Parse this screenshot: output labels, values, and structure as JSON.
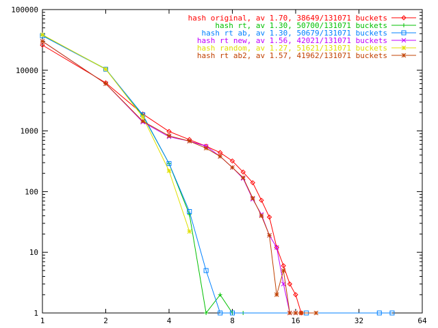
{
  "chart_data": {
    "type": "line",
    "title": "",
    "xlabel": "",
    "ylabel": "",
    "x_scale": "log2",
    "y_scale": "log10",
    "xlim": [
      1,
      64
    ],
    "ylim": [
      1,
      100000
    ],
    "x_ticks": [
      1,
      2,
      4,
      8,
      16,
      32,
      64
    ],
    "x_tick_labels": [
      "1",
      "2",
      "4",
      "8",
      "16",
      "32",
      "64"
    ],
    "y_ticks": [
      1,
      10,
      100,
      1000,
      10000,
      100000
    ],
    "y_tick_labels": [
      "1",
      "10",
      "100",
      "1000",
      "10000",
      "100000"
    ],
    "grid": false,
    "legend_position": "top-right",
    "series": [
      {
        "name": "hash original, av 1.70, 38649/131071 buckets",
        "color": "#ff0000",
        "marker": "diamond",
        "x": [
          1,
          2,
          3,
          4,
          5,
          6,
          7,
          8,
          9,
          10,
          11,
          12,
          13,
          14,
          15,
          16,
          17
        ],
        "y": [
          26000,
          6200,
          1900,
          980,
          720,
          560,
          440,
          320,
          210,
          140,
          72,
          38,
          12,
          6,
          3,
          2,
          1
        ]
      },
      {
        "name": "hash rt, av 1.30, 50700/131071 buckets",
        "color": "#00c000",
        "marker": "plus",
        "x": [
          1,
          2,
          3,
          4,
          5,
          6,
          7,
          8,
          9
        ],
        "y": [
          38000,
          10500,
          1800,
          290,
          42,
          1,
          2,
          1,
          1
        ]
      },
      {
        "name": "hash rt ab, av 1.30, 50679/131071 buckets",
        "color": "#0080ff",
        "marker": "square",
        "x": [
          1,
          2,
          3,
          4,
          5,
          6,
          7,
          8,
          18,
          40,
          46
        ],
        "y": [
          37000,
          10400,
          1850,
          290,
          47,
          5,
          1,
          1,
          1,
          1,
          1
        ]
      },
      {
        "name": "hash rt new, av 1.56, 42021/131071 buckets",
        "color": "#c000ff",
        "marker": "x",
        "x": [
          1,
          2,
          3,
          4,
          5,
          6,
          7,
          8,
          9,
          10,
          11,
          12,
          13,
          14,
          15,
          16
        ],
        "y": [
          30000,
          6000,
          1400,
          800,
          680,
          560,
          380,
          250,
          165,
          75,
          42,
          19,
          12,
          3,
          1,
          1
        ]
      },
      {
        "name": "hash random, av 1.27, 51621/131071 buckets",
        "color": "#e0e000",
        "marker": "star",
        "x": [
          1,
          2,
          3,
          4,
          5
        ],
        "y": [
          38500,
          10400,
          1700,
          220,
          22
        ]
      },
      {
        "name": "hash rt ab2, av 1.57, 41962/131071 buckets",
        "color": "#c04000",
        "marker": "star",
        "x": [
          1,
          2,
          3,
          4,
          5,
          6,
          7,
          8,
          9,
          10,
          11,
          12,
          13,
          14,
          15,
          16,
          17,
          20
        ],
        "y": [
          30000,
          6000,
          1450,
          830,
          680,
          520,
          380,
          250,
          170,
          78,
          40,
          19,
          2,
          5,
          1,
          1,
          1,
          1
        ]
      }
    ]
  }
}
